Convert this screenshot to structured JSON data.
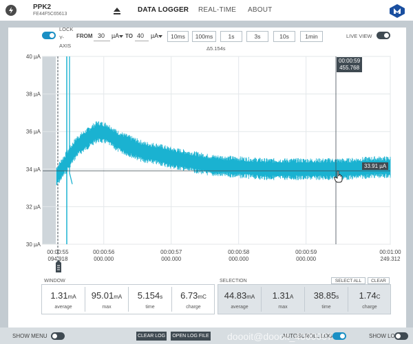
{
  "header": {
    "device_name": "PPK2",
    "device_serial": "FE44F5C65613",
    "nav": [
      "DATA LOGGER",
      "REAL-TIME",
      "ABOUT"
    ],
    "active_nav": "DATA LOGGER"
  },
  "toolbar": {
    "lock_y_axis_label": "LOCK Y-AXIS",
    "lock_line1": "LOCK",
    "lock_line2": "Y-",
    "lock_line3": "AXIS",
    "from_label": "FROM",
    "from_value": "30",
    "from_unit": "µA",
    "to_label": "TO",
    "to_value": "40",
    "to_unit": "µA",
    "window_buttons": [
      "10ms",
      "100ms",
      "1s",
      "3s",
      "10s",
      "1min"
    ],
    "live_view_label": "LIVE VIEW"
  },
  "delta_label": "Δ5.154s",
  "chart_data": {
    "type": "line",
    "title": "",
    "xlabel": "",
    "ylabel": "",
    "ylim": [
      30,
      40
    ],
    "yticks": [
      "40 µA",
      "38 µA",
      "36 µA",
      "34 µA",
      "32 µA",
      "30 µA"
    ],
    "xticks": [
      {
        "time": "00:00:55",
        "sub": "094.918"
      },
      {
        "time": "00:00:56",
        "sub": "000.000"
      },
      {
        "time": "00:00:57",
        "sub": "000.000"
      },
      {
        "time": "00:00:58",
        "sub": "000.000"
      },
      {
        "time": "00:00:59",
        "sub": "000.000"
      },
      {
        "time": "00:01:00",
        "sub": "249.312"
      }
    ],
    "series": [
      {
        "values_x_s": [
          55.3,
          55.45,
          55.6,
          55.75,
          55.9,
          56.05,
          56.2,
          56.4,
          56.6,
          56.8,
          57.0,
          57.3,
          57.6,
          58.0,
          58.4,
          58.8,
          59.2,
          59.6,
          60.0,
          60.25
        ],
        "values_y_uA": [
          33.6,
          34.4,
          35.2,
          35.6,
          36.0,
          35.9,
          35.5,
          35.2,
          34.9,
          34.8,
          34.6,
          34.4,
          34.2,
          34.1,
          34.0,
          34.0,
          34.0,
          34.0,
          34.1,
          34.1
        ]
      }
    ],
    "cursor": {
      "time": "00:00:59",
      "value": "455.768"
    },
    "average_marker": "33.91 µA",
    "color": "#1ab2d1"
  },
  "stats": {
    "window_label": "WINDOW",
    "selection_label": "SELECTION",
    "select_all": "SELECT ALL",
    "clear": "CLEAR",
    "window": [
      {
        "value": "1.31",
        "unit": "mA",
        "caption": "average"
      },
      {
        "value": "95.01",
        "unit": "mA",
        "caption": "max"
      },
      {
        "value": "5.154",
        "unit": "s",
        "caption": "time"
      },
      {
        "value": "6.73",
        "unit": "mC",
        "caption": "charge"
      }
    ],
    "selection": [
      {
        "value": "44.83",
        "unit": "mA",
        "caption": "average"
      },
      {
        "value": "1.31",
        "unit": "A",
        "caption": "max"
      },
      {
        "value": "38.85",
        "unit": "s",
        "caption": "time"
      },
      {
        "value": "1.74",
        "unit": "C",
        "caption": "charge"
      }
    ]
  },
  "footer": {
    "show_menu": "SHOW MENU",
    "clear_log": "CLEAR LOG",
    "open_log_file": "OPEN LOG FILE",
    "autoscroll": "AUTOSCROLL LOG",
    "show_log": "SHOW LOG",
    "watermark": "doooit@doooit_4000007"
  }
}
